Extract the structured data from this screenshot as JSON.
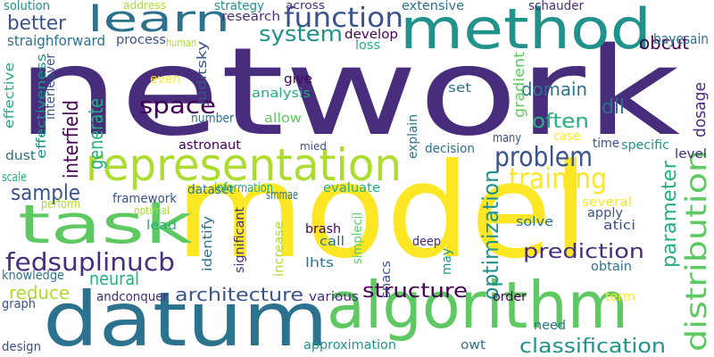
{
  "background": "#ffffff",
  "palette": {
    "deep_purple": "#440154",
    "purple": "#472d7b",
    "indigo": "#3b528b",
    "blue": "#2c728e",
    "teal": "#21918c",
    "green": "#28ae80",
    "light_green": "#5ec962",
    "lime": "#addc30",
    "yellow": "#fde725"
  },
  "words": [
    {
      "text": "network",
      "color": "#472d7b"
    },
    {
      "text": "model",
      "color": "#fde725"
    },
    {
      "text": "datum",
      "color": "#2c728e"
    },
    {
      "text": "algorithm",
      "color": "#5ec962"
    },
    {
      "text": "method",
      "color": "#21918c"
    },
    {
      "text": "representation",
      "color": "#addc30"
    },
    {
      "text": "task",
      "color": "#5ec962"
    },
    {
      "text": "learn",
      "color": "#2c728e"
    },
    {
      "text": "function",
      "color": "#3b528b"
    },
    {
      "text": "system",
      "color": "#21918c"
    },
    {
      "text": "problem",
      "color": "#3b528b"
    },
    {
      "text": "training",
      "color": "#fde725"
    },
    {
      "text": "space",
      "color": "#440154"
    },
    {
      "text": "fedsuplinucb",
      "color": "#472d7b"
    },
    {
      "text": "sample",
      "color": "#3b528b"
    },
    {
      "text": "prediction",
      "color": "#472d7b"
    },
    {
      "text": "architecture",
      "color": "#3b528b"
    },
    {
      "text": "structure",
      "color": "#440154"
    },
    {
      "text": "classification",
      "color": "#21918c"
    },
    {
      "text": "distribution",
      "color": "#5ec962"
    },
    {
      "text": "optimization",
      "color": "#21918c"
    },
    {
      "text": "parameter",
      "color": "#28ae80"
    },
    {
      "text": "neural",
      "color": "#28ae80"
    },
    {
      "text": "reduce",
      "color": "#addc30"
    },
    {
      "text": "generate",
      "color": "#28ae80"
    },
    {
      "text": "interfield",
      "color": "#440154"
    },
    {
      "text": "domain",
      "color": "#2c728e"
    },
    {
      "text": "often",
      "color": "#28ae80"
    },
    {
      "text": "dil",
      "color": "#2c728e"
    },
    {
      "text": "obcut",
      "color": "#440154"
    },
    {
      "text": "better",
      "color": "#3b528b"
    },
    {
      "text": "solution",
      "color": "#21918c"
    },
    {
      "text": "straighforward",
      "color": "#2c728e"
    },
    {
      "text": "process",
      "color": "#3b528b"
    },
    {
      "text": "address",
      "color": "#addc30"
    },
    {
      "text": "human",
      "color": "#addc30"
    },
    {
      "text": "strategy",
      "color": "#21918c"
    },
    {
      "text": "juditsky",
      "color": "#3b528b"
    },
    {
      "text": "research",
      "color": "#472d7b"
    },
    {
      "text": "across",
      "color": "#472d7b"
    },
    {
      "text": "develop",
      "color": "#440154"
    },
    {
      "text": "loss",
      "color": "#28ae80"
    },
    {
      "text": "extensive",
      "color": "#2c728e"
    },
    {
      "text": "schauder",
      "color": "#472d7b"
    },
    {
      "text": "bayesain",
      "color": "#2c728e"
    },
    {
      "text": "interleaver",
      "color": "#3b528b"
    },
    {
      "text": "effectiveness",
      "color": "#21918c"
    },
    {
      "text": "effective",
      "color": "#28ae80"
    },
    {
      "text": "even",
      "color": "#fde725"
    },
    {
      "text": "give",
      "color": "#440154"
    },
    {
      "text": "analysis",
      "color": "#28ae80"
    },
    {
      "text": "allow",
      "color": "#5ec962"
    },
    {
      "text": "set",
      "color": "#2c728e"
    },
    {
      "text": "gradient",
      "color": "#5ec962"
    },
    {
      "text": "dosage",
      "color": "#472d7b"
    },
    {
      "text": "number",
      "color": "#2c728e"
    },
    {
      "text": "explain",
      "color": "#2c728e"
    },
    {
      "text": "many",
      "color": "#3b528b"
    },
    {
      "text": "case",
      "color": "#fde725"
    },
    {
      "text": "time",
      "color": "#3b528b"
    },
    {
      "text": "specific",
      "color": "#21918c"
    },
    {
      "text": "level",
      "color": "#472d7b"
    },
    {
      "text": "decision",
      "color": "#2c728e"
    },
    {
      "text": "mied",
      "color": "#3b528b"
    },
    {
      "text": "astronaut",
      "color": "#440154"
    },
    {
      "text": "dust",
      "color": "#2c728e"
    },
    {
      "text": "scale",
      "color": "#28ae80"
    },
    {
      "text": "perform",
      "color": "#addc30"
    },
    {
      "text": "framework",
      "color": "#3b528b"
    },
    {
      "text": "dataset",
      "color": "#2c728e"
    },
    {
      "text": "information",
      "color": "#28ae80"
    },
    {
      "text": "smmae",
      "color": "#2c728e"
    },
    {
      "text": "evaluate",
      "color": "#28ae80"
    },
    {
      "text": "optimal",
      "color": "#addc30"
    },
    {
      "text": "lead",
      "color": "#28ae80"
    },
    {
      "text": "several",
      "color": "#fde725"
    },
    {
      "text": "apply",
      "color": "#3b528b"
    },
    {
      "text": "atici",
      "color": "#3b528b"
    },
    {
      "text": "solve",
      "color": "#2c728e"
    },
    {
      "text": "identify",
      "color": "#2c728e"
    },
    {
      "text": "significant",
      "color": "#472d7b"
    },
    {
      "text": "increase",
      "color": "#addc30"
    },
    {
      "text": "brash",
      "color": "#440154"
    },
    {
      "text": "call",
      "color": "#2c728e"
    },
    {
      "text": "lhts",
      "color": "#2c728e"
    },
    {
      "text": "simplecil",
      "color": "#5ec962"
    },
    {
      "text": "snacs",
      "color": "#3b528b"
    },
    {
      "text": "deep",
      "color": "#472d7b"
    },
    {
      "text": "may",
      "color": "#21918c"
    },
    {
      "text": "obtain",
      "color": "#2c728e"
    },
    {
      "text": "knowledge",
      "color": "#2c728e"
    },
    {
      "text": "graph",
      "color": "#3b528b"
    },
    {
      "text": "andconquer",
      "color": "#472d7b"
    },
    {
      "text": "various",
      "color": "#472d7b"
    },
    {
      "text": "order",
      "color": "#440154"
    },
    {
      "text": "term",
      "color": "#fde725"
    },
    {
      "text": "need",
      "color": "#2c728e"
    },
    {
      "text": "design",
      "color": "#3b528b"
    },
    {
      "text": "approximation",
      "color": "#21918c"
    },
    {
      "text": "owt",
      "color": "#2c728e"
    }
  ]
}
